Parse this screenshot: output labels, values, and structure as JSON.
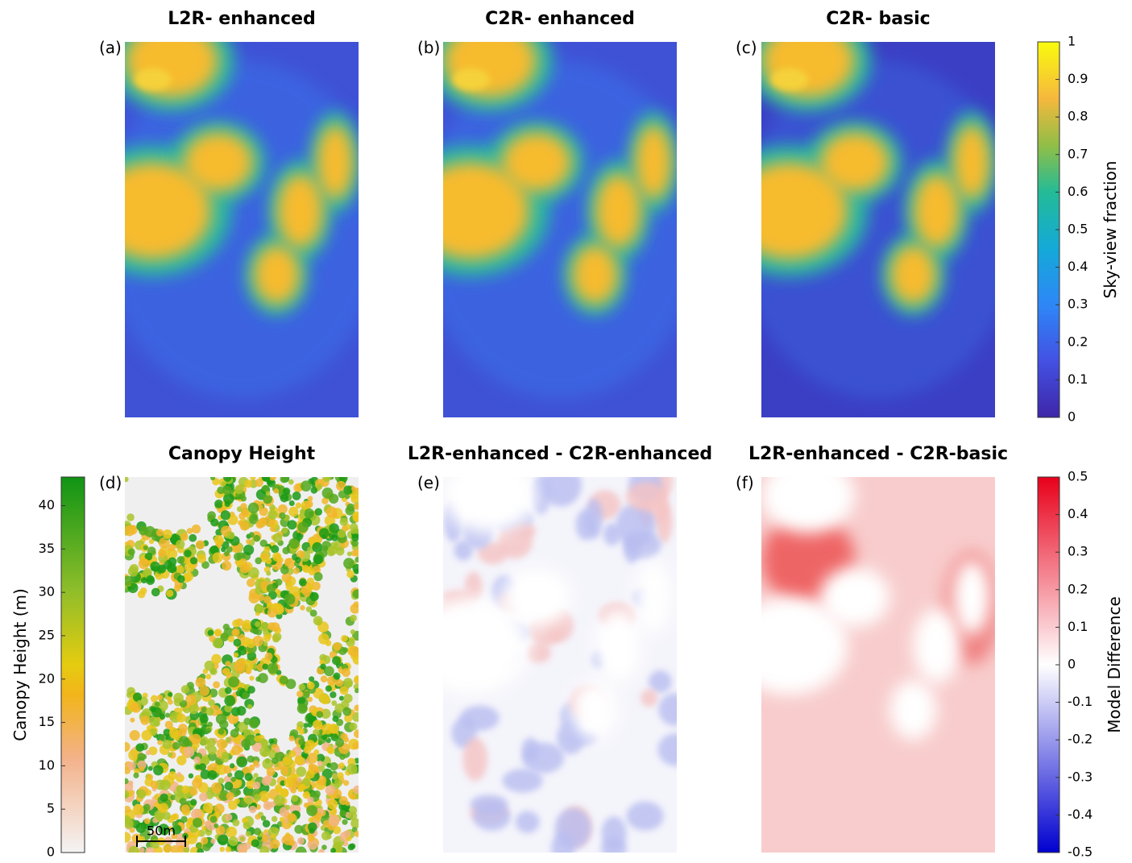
{
  "panels": [
    {
      "label": "(a)",
      "title": "L2R- enhanced"
    },
    {
      "label": "(b)",
      "title": "C2R- enhanced"
    },
    {
      "label": "(c)",
      "title": "C2R- basic"
    },
    {
      "label": "(d)",
      "title": "Canopy Height"
    },
    {
      "label": "(e)",
      "title": "L2R-enhanced - C2R-enhanced"
    },
    {
      "label": "(f)",
      "title": "L2R-enhanced - C2R-basic"
    }
  ],
  "colorbars": {
    "sky": {
      "label": "Sky-view fraction",
      "lim": [
        0,
        1
      ],
      "ticks": [
        0,
        0.1,
        0.2,
        0.3,
        0.4,
        0.5,
        0.6,
        0.7,
        0.8,
        0.9,
        1
      ]
    },
    "canopy": {
      "label": "Canopy Height (m)",
      "lim": [
        0,
        43.3
      ],
      "ticks": [
        0,
        5,
        10,
        15,
        20,
        25,
        30,
        35,
        40
      ]
    },
    "diff": {
      "label": "Model Difference",
      "lim": [
        -0.5,
        0.5
      ],
      "ticks": [
        -0.5,
        -0.4,
        -0.3,
        -0.2,
        -0.1,
        0,
        0.1,
        0.2,
        0.3,
        0.4,
        0.5
      ]
    }
  },
  "scale_bar": "50m"
}
